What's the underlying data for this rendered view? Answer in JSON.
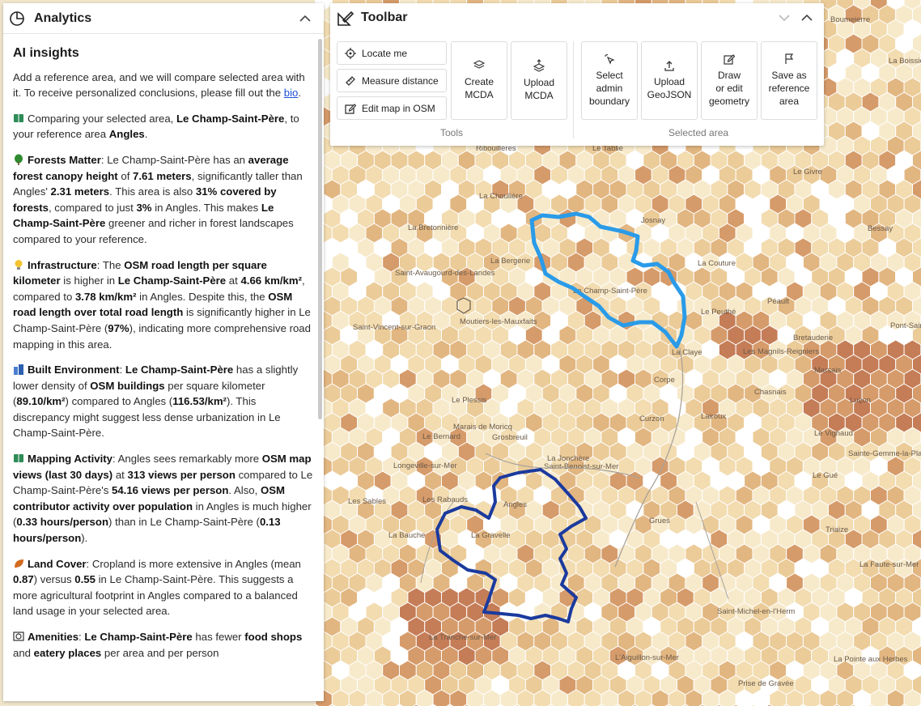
{
  "analytics": {
    "title": "Analytics",
    "heading": "AI insights",
    "intro_text": "Add a reference area, and we will compare selected area with it. To receive personalized conclusions, please fill out the ",
    "intro_link": "bio",
    "intro_end": ".",
    "compare": {
      "t1": "Comparing your selected area, ",
      "b1": "Le Champ-Saint-Père",
      "t2": ", to your reference area ",
      "b2": "Angles",
      "t3": "."
    },
    "forests": {
      "b1": "Forests Matter",
      "t1": ": Le Champ-Saint-Père has an ",
      "b2": "average forest canopy height",
      "t2": " of ",
      "b3": "7.61 meters",
      "t3": ", significantly taller than Angles' ",
      "b4": "2.31 meters",
      "t4": ". This area is also ",
      "b5": "31% covered by forests",
      "t5": ", compared to just ",
      "b6": "3%",
      "t6": " in Angles. This makes ",
      "b7": "Le Champ-Saint-Père",
      "t7": " greener and richer in forest landscapes compared to your reference."
    },
    "infra": {
      "b1": "Infrastructure",
      "t1": ": The ",
      "b2": "OSM road length per square kilometer",
      "t2": " is higher in ",
      "b3": "Le Champ-Saint-Père",
      "t3": " at ",
      "b4": "4.66 km/km²",
      "t4": ", compared to ",
      "b5": "3.78 km/km²",
      "t5": " in Angles. Despite this, the ",
      "b6": "OSM road length over total road length",
      "t6": " is significantly higher in Le Champ-Saint-Père (",
      "b7": "97%",
      "t7": "), indicating more comprehensive road mapping in this area."
    },
    "built": {
      "b1": "Built Environment",
      "t1": ": ",
      "b2": "Le Champ-Saint-Père",
      "t2": " has a slightly lower density of ",
      "b3": "OSM buildings",
      "t3": " per square kilometer (",
      "b4": "89.10/km²",
      "t4": ") compared to Angles (",
      "b5": "116.53/km²",
      "t5": "). This discrepancy might suggest less dense urbanization in Le Champ-Saint-Père."
    },
    "mapping": {
      "b1": "Mapping Activity",
      "t1": ": Angles sees remarkably more ",
      "b2": "OSM map views (last 30 days)",
      "t2": " at ",
      "b3": "313 views per person",
      "t3": " compared to Le Champ-Saint-Père's ",
      "b4": "54.16 views per person",
      "t4": ". Also, ",
      "b5": "OSM contributor activity over population",
      "t5": " in Angles is much higher (",
      "b6": "0.33 hours/person",
      "t6": ") than in Le Champ-Saint-Père (",
      "b7": "0.13 hours/person",
      "t7": ")."
    },
    "land": {
      "b1": "Land Cover",
      "t1": ": Cropland is more extensive in Angles (mean ",
      "b2": "0.87",
      "t2": ") versus ",
      "b3": "0.55",
      "t3": " in Le Champ-Saint-Père. This suggests a more agricultural footprint in Angles compared to a balanced land usage in your selected area."
    },
    "amenities": {
      "b1": "Amenities",
      "t1": ": ",
      "b2": "Le Champ-Saint-Père",
      "t2": " has fewer ",
      "b3": "food shops",
      "t3": " and ",
      "b4": "eatery places",
      "t4": " per area and per person"
    }
  },
  "toolbar": {
    "title": "Toolbar",
    "tools_label": "Tools",
    "selected_label": "Selected area",
    "locate": "Locate me",
    "measure": "Measure distance",
    "edit_osm": "Edit map in OSM",
    "create_mcda_1": "Create",
    "create_mcda_2": "MCDA",
    "upload_mcda_1": "Upload",
    "upload_mcda_2": "MCDA",
    "select_admin_1": "Select",
    "select_admin_2": "admin",
    "select_admin_3": "boundary",
    "upload_geojson_1": "Upload",
    "upload_geojson_2": "GeoJSON",
    "draw_1": "Draw",
    "draw_2": "or edit",
    "draw_3": "geometry",
    "save_ref_1": "Save as",
    "save_ref_2": "reference",
    "save_ref_3": "area"
  },
  "map": {
    "labels": [
      "Boumeierre",
      "La Boissière",
      "Ribouillères",
      "Le Tablié",
      "La Bretonnière",
      "La Choulière",
      "Josnay",
      "La Couture",
      "Bessay",
      "Le Champ-Saint-Père",
      "La Bergerie",
      "Le Peuthé",
      "Péault",
      "Moutiers-les-Mauxfaits",
      "La Claye",
      "Les Magnils-Reigniers",
      "Le Plessis",
      "Chasnais",
      "Luçon",
      "Corpe",
      "La Jonchère",
      "Curzon",
      "Le Bernard",
      "Grosbreuil",
      "Saint-Benoist-sur-Mer",
      "Longeville-sur-Mer",
      "Les Rabauds",
      "Angles",
      "Grues",
      "La Tranche-sur-Mer",
      "L'Aiguillon-sur-Mer",
      "La Pointe aux Herbes",
      "Prise de Gravée",
      "Les Sables",
      "Saint-Michel-en-l'Herm",
      "Triaize",
      "Le Gué",
      "Sainte-Gemme-la-Plaine",
      "La Faute-sur-Mer",
      "La Bauche",
      "La Gravelle",
      "Lairoux",
      "Saint-Avaugourd-des-Landes",
      "Saint-Vincent-sur-Graon",
      "Le Givre",
      "Pont-Saint-Hilaire",
      "Bretauderie",
      "Marsais",
      "Le Vignaud",
      "Marais de Moricq"
    ],
    "hex_palette": [
      "#f7eacb",
      "#f2dcb0",
      "#ebcb98",
      "#e2b681",
      "#d69b6a",
      "#c57d57",
      "#ffffff"
    ],
    "selected_area_color": "#2a9be8",
    "reference_area_color": "#1b3a9e"
  }
}
